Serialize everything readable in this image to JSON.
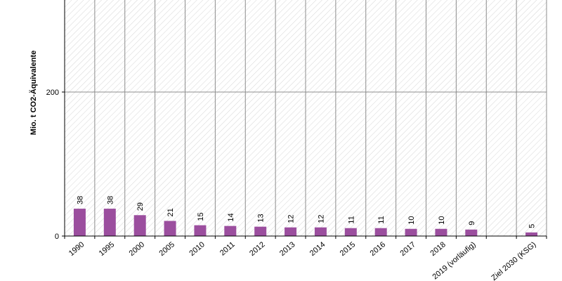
{
  "chart_data": {
    "type": "bar",
    "ylabel": "Mio. t CO2-Äquivalente",
    "ylim": [
      0,
      400
    ],
    "yticks": [
      0,
      200
    ],
    "grid": true,
    "colors": {
      "bar": "#9b4e9e",
      "grid": "#8c8c8c",
      "hatch": "#d6d6d6",
      "axis": "#000000"
    },
    "categories": [
      "1990",
      "1995",
      "2000",
      "2005",
      "2010",
      "2011",
      "2012",
      "2013",
      "2014",
      "2015",
      "2016",
      "2017",
      "2018",
      "2019 (vorläufig)",
      "",
      "Ziel 2030 (KSG)"
    ],
    "values": [
      38,
      38,
      29,
      21,
      15,
      14,
      13,
      12,
      12,
      11,
      11,
      10,
      10,
      9,
      null,
      5
    ],
    "labels": [
      "38",
      "38",
      "29",
      "21",
      "15",
      "14",
      "13",
      "12",
      "12",
      "11",
      "11",
      "10",
      "10",
      "9",
      "",
      "5"
    ]
  }
}
